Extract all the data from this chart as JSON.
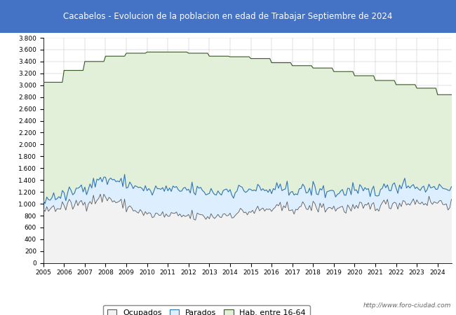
{
  "title": "Cacabelos - Evolucion de la poblacion en edad de Trabajar Septiembre de 2024",
  "title_bg_color": "#4472c4",
  "title_text_color": "white",
  "ylim": [
    0,
    3800
  ],
  "yticks": [
    0,
    200,
    400,
    600,
    800,
    1000,
    1200,
    1400,
    1600,
    1800,
    2000,
    2200,
    2400,
    2600,
    2800,
    3000,
    3200,
    3400,
    3600,
    3800
  ],
  "year_labels": [
    2005,
    2006,
    2007,
    2008,
    2009,
    2010,
    2011,
    2012,
    2013,
    2014,
    2015,
    2016,
    2017,
    2018,
    2019,
    2020,
    2021,
    2022,
    2023,
    2024
  ],
  "hab_annual": [
    3050,
    3250,
    3400,
    3490,
    3540,
    3560,
    3560,
    3540,
    3490,
    3480,
    3450,
    3380,
    3330,
    3290,
    3230,
    3160,
    3080,
    3010,
    2950,
    2840
  ],
  "color_hab": "#e2f0d9",
  "color_hab_line": "#375623",
  "color_parados": "#ddeeff",
  "color_parados_line": "#2e75b6",
  "color_ocupados": "#f2f2f2",
  "color_ocupados_line": "#595959",
  "watermark": "http://www.foro-ciudad.com",
  "legend_labels": [
    "Ocupados",
    "Parados",
    "Hab. entre 16-64"
  ],
  "legend_colors_fill": [
    "#f2f2f2",
    "#ddeeff",
    "#e2f0d9"
  ],
  "legend_colors_edge": [
    "#595959",
    "#2e75b6",
    "#375623"
  ]
}
